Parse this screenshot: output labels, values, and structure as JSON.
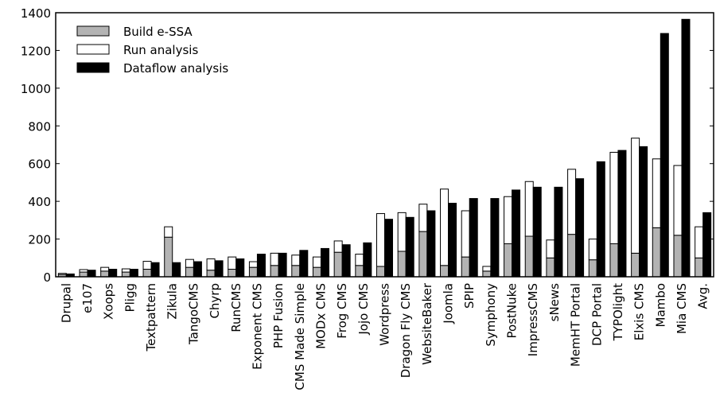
{
  "chart_data": {
    "type": "bar",
    "categories": [
      "Drupal",
      "e107",
      "Xoops",
      "Pligg",
      "Textpattern",
      "Zikula",
      "TangoCMS",
      "Chyrp",
      "RunCMS",
      "Exponent CMS",
      "PHP Fusion",
      "CMS Made Simple",
      "MODx CMS",
      "Frog CMS",
      "Jojo CMS",
      "Wordpress",
      "Dragon Fly CMS",
      "WebsiteBaker",
      "Joomla",
      "SPIP",
      "Symphony",
      "PostNuke",
      "ImpressCMS",
      "sNews",
      "MemHT Portal",
      "DCP Portal",
      "TYPOlight",
      "Elxis CMS",
      "Mambo",
      "Mia CMS",
      "Avg."
    ],
    "series": [
      {
        "name": "Build e-SSA",
        "color": "#b3b3b3",
        "stack": 0,
        "values": [
          12,
          25,
          30,
          25,
          40,
          210,
          50,
          35,
          40,
          50,
          60,
          60,
          50,
          130,
          60,
          55,
          135,
          240,
          60,
          105,
          30,
          175,
          215,
          100,
          225,
          90,
          175,
          125,
          260,
          220,
          100
        ]
      },
      {
        "name": "Run analysis",
        "color": "#ffffff",
        "stack": 0,
        "values": [
          6,
          13,
          20,
          17,
          42,
          55,
          42,
          60,
          65,
          30,
          65,
          55,
          55,
          60,
          60,
          280,
          205,
          145,
          405,
          245,
          25,
          250,
          290,
          95,
          345,
          110,
          485,
          610,
          365,
          370,
          165
        ]
      },
      {
        "name": "Dataflow analysis",
        "color": "#000000",
        "stack": 1,
        "values": [
          15,
          35,
          40,
          40,
          75,
          75,
          80,
          85,
          95,
          120,
          125,
          140,
          150,
          170,
          180,
          305,
          315,
          350,
          390,
          415,
          415,
          460,
          475,
          475,
          520,
          610,
          670,
          690,
          1290,
          1365,
          340
        ]
      }
    ],
    "ylim": [
      0,
      1400
    ],
    "yticks": [
      0,
      200,
      400,
      600,
      800,
      1000,
      1200,
      1400
    ],
    "legend": "upper left"
  }
}
